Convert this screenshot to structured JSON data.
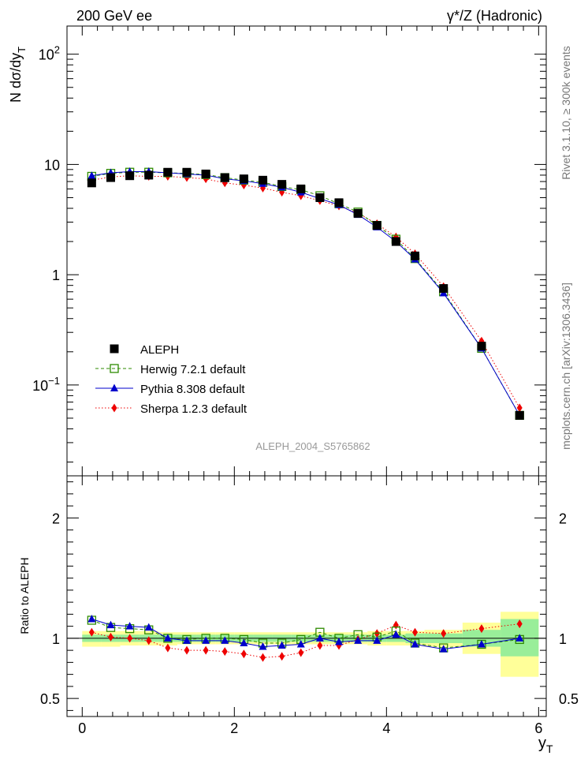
{
  "header": {
    "left": "200 GeV ee",
    "right": "γ*/Z (Hadronic)"
  },
  "side_labels": {
    "rivet": "Rivet 3.1.10, ≥ 300k events",
    "mcplots": "mcplots.cern.ch [arXiv:1306.3436]"
  },
  "watermark": "ALEPH_2004_S5765862",
  "axes": {
    "ylabel_top": "N dσ/dy_T",
    "ylabel_bottom": "Ratio to ALEPH",
    "xlabel": "y_T"
  },
  "colors": {
    "data": "#000000",
    "herwig": "#2e8b00",
    "pythia": "#0000cc",
    "sherpa": "#ee0000",
    "band_inner": "#99ee99",
    "band_outer": "#ffff99"
  },
  "chart_data": [
    {
      "type": "scatter",
      "panel": "main",
      "x_range": [
        -0.2,
        6.1
      ],
      "y_range": [
        0.015,
        180
      ],
      "y_scale": "log",
      "x_ticks": [
        "0",
        "2",
        "4",
        "6"
      ],
      "y_ticks": [
        "10^-1",
        "1",
        "10",
        "10^2"
      ],
      "ylabel": "N dσ/dy_T",
      "xlabel": "y_T",
      "legend_position": "middle-left",
      "x": [
        0.125,
        0.375,
        0.625,
        0.875,
        1.125,
        1.375,
        1.625,
        1.875,
        2.125,
        2.375,
        2.625,
        2.875,
        3.125,
        3.375,
        3.625,
        3.875,
        4.125,
        4.375,
        4.75,
        5.25,
        5.75
      ],
      "series": [
        {
          "name": "ALEPH",
          "style": "data",
          "values": [
            6.8,
            7.6,
            7.9,
            8.0,
            8.5,
            8.5,
            8.2,
            7.6,
            7.4,
            7.2,
            6.6,
            6.0,
            5.0,
            4.5,
            3.6,
            2.8,
            2.0,
            1.48,
            0.75,
            0.225,
            0.053
          ]
        },
        {
          "name": "Herwig 7.2.1 default",
          "style": "herwig",
          "values": [
            7.8,
            8.3,
            8.5,
            8.5,
            8.4,
            8.3,
            8.1,
            7.6,
            7.2,
            6.9,
            6.3,
            5.9,
            5.2,
            4.4,
            3.7,
            2.8,
            2.1,
            1.4,
            0.7,
            0.215,
            0.053
          ]
        },
        {
          "name": "Pythia 8.308 default",
          "style": "pythia",
          "values": [
            7.9,
            8.4,
            8.6,
            8.6,
            8.4,
            8.2,
            8.0,
            7.4,
            7.1,
            6.7,
            6.2,
            5.6,
            4.9,
            4.3,
            3.5,
            2.7,
            2.0,
            1.38,
            0.68,
            0.215,
            0.053
          ]
        },
        {
          "name": "Sherpa 1.2.3 default",
          "style": "sherpa",
          "values": [
            7.2,
            7.7,
            7.9,
            7.8,
            7.8,
            7.6,
            7.4,
            6.8,
            6.5,
            6.1,
            5.6,
            5.2,
            4.7,
            4.2,
            3.6,
            2.9,
            2.2,
            1.55,
            0.78,
            0.25,
            0.062
          ]
        }
      ]
    },
    {
      "type": "scatter",
      "panel": "ratio",
      "x_range": [
        -0.2,
        6.1
      ],
      "y_range": [
        0.35,
        2.35
      ],
      "x_ticks": [
        "0",
        "2",
        "4",
        "6"
      ],
      "y_ticks": [
        "0.5",
        "1",
        "2"
      ],
      "ylabel": "Ratio to ALEPH",
      "xlabel": "y_T",
      "x": [
        0.125,
        0.375,
        0.625,
        0.875,
        1.125,
        1.375,
        1.625,
        1.875,
        2.125,
        2.375,
        2.625,
        2.875,
        3.125,
        3.375,
        3.625,
        3.875,
        4.125,
        4.375,
        4.75,
        5.25,
        5.75
      ],
      "bands": {
        "edges": [
          0.0,
          0.25,
          0.5,
          0.75,
          1.0,
          1.25,
          1.5,
          1.75,
          2.0,
          2.25,
          2.5,
          2.75,
          3.0,
          3.25,
          3.5,
          3.75,
          4.0,
          4.25,
          4.5,
          5.0,
          5.5,
          6.0
        ],
        "inner": [
          [
            0.97,
            1.03
          ],
          [
            0.97,
            1.03
          ],
          [
            0.97,
            1.03
          ],
          [
            0.97,
            1.03
          ],
          [
            0.97,
            1.03
          ],
          [
            0.97,
            1.03
          ],
          [
            0.97,
            1.03
          ],
          [
            0.97,
            1.03
          ],
          [
            0.97,
            1.03
          ],
          [
            0.97,
            1.03
          ],
          [
            0.97,
            1.03
          ],
          [
            0.97,
            1.03
          ],
          [
            0.97,
            1.03
          ],
          [
            0.97,
            1.03
          ],
          [
            0.97,
            1.03
          ],
          [
            0.97,
            1.03
          ],
          [
            0.97,
            1.03
          ],
          [
            0.96,
            1.04
          ],
          [
            0.96,
            1.04
          ],
          [
            0.93,
            1.07
          ],
          [
            0.85,
            1.16
          ]
        ],
        "outer": [
          [
            0.93,
            1.06
          ],
          [
            0.93,
            1.06
          ],
          [
            0.94,
            1.06
          ],
          [
            0.94,
            1.06
          ],
          [
            0.94,
            1.05
          ],
          [
            0.95,
            1.05
          ],
          [
            0.95,
            1.05
          ],
          [
            0.95,
            1.05
          ],
          [
            0.95,
            1.05
          ],
          [
            0.95,
            1.05
          ],
          [
            0.95,
            1.05
          ],
          [
            0.95,
            1.05
          ],
          [
            0.95,
            1.05
          ],
          [
            0.95,
            1.05
          ],
          [
            0.95,
            1.05
          ],
          [
            0.94,
            1.06
          ],
          [
            0.94,
            1.06
          ],
          [
            0.94,
            1.06
          ],
          [
            0.93,
            1.07
          ],
          [
            0.87,
            1.13
          ],
          [
            0.68,
            1.22
          ]
        ]
      },
      "series": [
        {
          "name": "Herwig 7.2.1 default",
          "style": "herwig",
          "values": [
            1.15,
            1.09,
            1.08,
            1.07,
            1.0,
            0.99,
            1.0,
            1.0,
            0.99,
            0.96,
            0.96,
            0.99,
            1.05,
            1.0,
            1.03,
            1.01,
            1.06,
            0.96,
            0.92,
            0.95,
            0.99
          ]
        },
        {
          "name": "Pythia 8.308 default",
          "style": "pythia",
          "values": [
            1.16,
            1.11,
            1.1,
            1.09,
            1.0,
            0.98,
            0.98,
            0.98,
            0.96,
            0.93,
            0.94,
            0.95,
            1.0,
            0.97,
            0.98,
            0.98,
            1.03,
            0.95,
            0.91,
            0.95,
            1.0
          ]
        },
        {
          "name": "Sherpa 1.2.3 default",
          "style": "sherpa",
          "values": [
            1.05,
            1.01,
            1.0,
            0.98,
            0.92,
            0.9,
            0.9,
            0.89,
            0.87,
            0.84,
            0.85,
            0.88,
            0.94,
            0.94,
            0.99,
            1.04,
            1.11,
            1.05,
            1.04,
            1.08,
            1.12
          ]
        }
      ]
    }
  ]
}
